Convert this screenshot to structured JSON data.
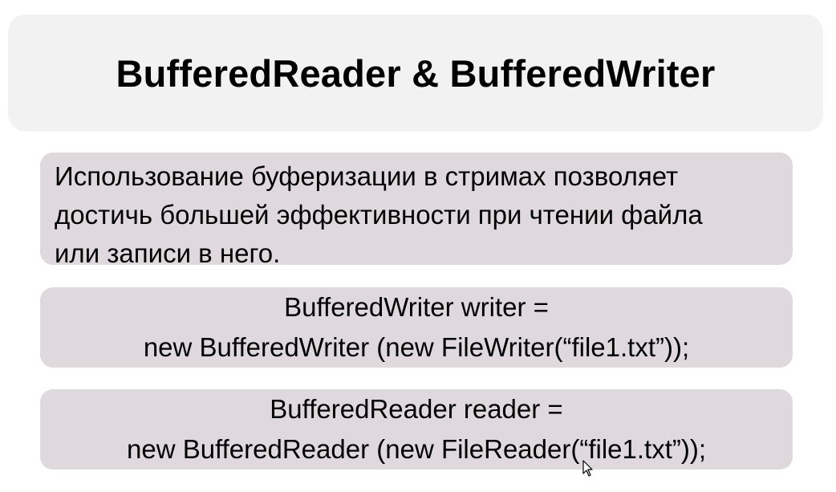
{
  "slide": {
    "title": "BufferedReader & BufferedWriter",
    "intro_lines": [
      "Использование буферизации в стримах позволяет",
      "достичь большей эффективности при чтении файла",
      "или записи в него."
    ],
    "writer_code": {
      "line1": "BufferedWriter writer =",
      "line2": "new BufferedWriter (new FileWriter(“file1.txt”));"
    },
    "reader_code": {
      "line1": "BufferedReader reader =",
      "line2": "new BufferedReader (new FileReader(“file1.txt”));"
    }
  },
  "cursor": {
    "icon": "mouse-pointer-icon"
  },
  "colors": {
    "title_box": "#f2f2f2",
    "content_box": "#dfd9dd",
    "text": "#000000"
  }
}
